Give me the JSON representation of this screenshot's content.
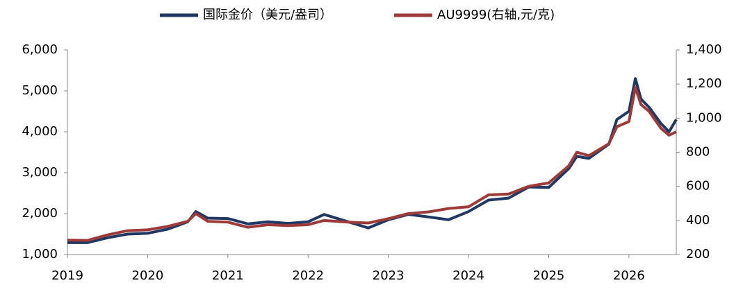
{
  "chart_data": {
    "type": "line",
    "x": [
      2019.0,
      2019.25,
      2019.5,
      2019.75,
      2020.0,
      2020.25,
      2020.5,
      2020.6,
      2020.75,
      2021.0,
      2021.25,
      2021.5,
      2021.75,
      2022.0,
      2022.2,
      2022.5,
      2022.75,
      2023.0,
      2023.25,
      2023.5,
      2023.75,
      2024.0,
      2024.25,
      2024.5,
      2024.75,
      2025.0,
      2025.25,
      2025.35,
      2025.5,
      2025.75,
      2025.85,
      2026.0,
      2026.08,
      2026.15,
      2026.25,
      2026.4,
      2026.5,
      2026.59
    ],
    "series": [
      {
        "name": "国际金价（美元/盎司）",
        "color": "#1f3864",
        "values": [
          1290,
          1290,
          1410,
          1500,
          1520,
          1620,
          1800,
          2050,
          1890,
          1880,
          1750,
          1800,
          1760,
          1800,
          1980,
          1800,
          1650,
          1850,
          1980,
          1920,
          1850,
          2050,
          2330,
          2380,
          2650,
          2640,
          3100,
          3400,
          3350,
          3700,
          4300,
          4500,
          5300,
          4800,
          4600,
          4200,
          4000,
          4300
        ]
      },
      {
        "name": "AU9999(右轴,元/克)",
        "color": "#9e3a38",
        "axis": "y2",
        "values": [
          285,
          283,
          315,
          340,
          345,
          365,
          395,
          440,
          395,
          390,
          360,
          375,
          370,
          375,
          400,
          390,
          385,
          410,
          440,
          450,
          470,
          480,
          550,
          555,
          600,
          620,
          720,
          800,
          780,
          850,
          950,
          980,
          1180,
          1080,
          1040,
          940,
          900,
          920
        ]
      }
    ],
    "xlim": [
      2019,
      2026.59
    ],
    "xticks": [
      2019,
      2020,
      2021,
      2022,
      2023,
      2024,
      2025,
      2026
    ],
    "ylim": [
      1000,
      6000
    ],
    "yticks": [
      {
        "value": 1000,
        "label": "1,000"
      },
      {
        "value": 2000,
        "label": "2,000"
      },
      {
        "value": 3000,
        "label": "3,000"
      },
      {
        "value": 4000,
        "label": "4,000"
      },
      {
        "value": 5000,
        "label": "5,000"
      },
      {
        "value": 6000,
        "label": "6,000"
      }
    ],
    "y2lim": [
      200,
      1400
    ],
    "y2ticks": [
      200,
      400,
      600,
      800,
      {
        "value": 1000,
        "label": "1,000"
      },
      {
        "value": 1200,
        "label": "1,200"
      },
      {
        "value": 1400,
        "label": "1,400"
      }
    ],
    "grid": false
  }
}
